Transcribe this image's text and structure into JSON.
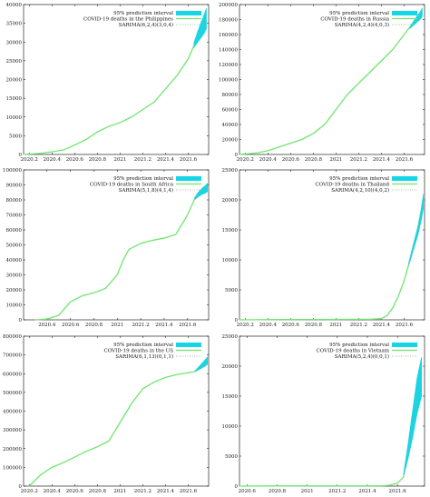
{
  "colors": {
    "line": "#6ee66e",
    "band": "#15d6e6",
    "sarima": "#8bb08b",
    "axis": "#000000",
    "grid": "#bbbbbb"
  },
  "chart_data": [
    {
      "type": "line",
      "title": "",
      "xlabel": "",
      "ylabel": "",
      "xlim": [
        2020.15,
        2021.78
      ],
      "ylim": [
        0,
        40000
      ],
      "xticks": [
        "2020.2",
        "2020.4",
        "2020.6",
        "2020.8",
        "2021",
        "2021.2",
        "2021.4",
        "2021.6"
      ],
      "yticks": [
        "0",
        "5000",
        "10000",
        "15000",
        "20000",
        "25000",
        "30000",
        "35000",
        "40000"
      ],
      "legend_position": "top-right",
      "series": [
        {
          "name": "95% prediction interval",
          "kind": "band",
          "x": [
            2021.65,
            2021.68,
            2021.71,
            2021.74,
            2021.76
          ],
          "lower": [
            28500,
            29800,
            31000,
            32300,
            33500
          ],
          "upper": [
            29800,
            32500,
            35000,
            37300,
            39000
          ]
        },
        {
          "name": "COVID-19 deaths in the Philippines",
          "kind": "line",
          "x": [
            2020.15,
            2020.3,
            2020.4,
            2020.5,
            2020.6,
            2020.7,
            2020.8,
            2020.9,
            2021.0,
            2021.1,
            2021.2,
            2021.3,
            2021.4,
            2021.5,
            2021.6,
            2021.65
          ],
          "y": [
            0,
            300,
            700,
            1200,
            2500,
            4000,
            6000,
            7500,
            8500,
            10000,
            12000,
            14000,
            17500,
            21000,
            25500,
            29000
          ]
        },
        {
          "name": "SARIMA(6,2,4)(3,0,4)",
          "kind": "dotted",
          "x": [
            2021.65,
            2021.7,
            2021.76
          ],
          "y": [
            29000,
            32000,
            36000
          ]
        }
      ]
    },
    {
      "type": "line",
      "title": "",
      "xlabel": "",
      "ylabel": "",
      "xlim": [
        2020.15,
        2021.78
      ],
      "ylim": [
        0,
        200000
      ],
      "xticks": [
        "2020.2",
        "2020.4",
        "2020.6",
        "2020.8",
        "2021",
        "2021.2",
        "2021.4",
        "2021.6"
      ],
      "yticks": [
        "0",
        "20000",
        "40000",
        "60000",
        "80000",
        "100000",
        "120000",
        "140000",
        "160000",
        "180000",
        "200000"
      ],
      "legend_position": "top-right",
      "series": [
        {
          "name": "95% prediction interval",
          "kind": "band",
          "x": [
            2021.65,
            2021.68,
            2021.71,
            2021.74,
            2021.76
          ],
          "lower": [
            168000,
            172000,
            176000,
            180000,
            184000
          ],
          "upper": [
            170000,
            177000,
            184000,
            190000,
            195000
          ]
        },
        {
          "name": "COVID-19 deaths in Russia",
          "kind": "line",
          "x": [
            2020.15,
            2020.3,
            2020.4,
            2020.5,
            2020.6,
            2020.7,
            2020.8,
            2020.9,
            2021.0,
            2021.1,
            2021.2,
            2021.3,
            2021.4,
            2021.5,
            2021.6,
            2021.65
          ],
          "y": [
            0,
            2000,
            5000,
            10000,
            15000,
            20000,
            28000,
            40000,
            60000,
            80000,
            95000,
            110000,
            125000,
            140000,
            160000,
            170000
          ]
        },
        {
          "name": "SARIMA(4,2,4)(4,0,3)",
          "kind": "dotted",
          "x": [
            2021.65,
            2021.7,
            2021.76
          ],
          "y": [
            170000,
            180000,
            190000
          ]
        }
      ]
    },
    {
      "type": "line",
      "title": "",
      "xlabel": "",
      "ylabel": "",
      "xlim": [
        2020.2,
        2021.78
      ],
      "ylim": [
        0,
        100000
      ],
      "xticks": [
        "2020.4",
        "2020.6",
        "2020.8",
        "2021",
        "2021.2",
        "2021.4",
        "2021.6"
      ],
      "yticks": [
        "0",
        "10000",
        "20000",
        "30000",
        "40000",
        "50000",
        "60000",
        "70000",
        "80000",
        "90000",
        "100000"
      ],
      "legend_position": "top-right",
      "series": [
        {
          "name": "95% prediction interval",
          "kind": "band",
          "x": [
            2021.66,
            2021.69,
            2021.72,
            2021.75,
            2021.77
          ],
          "lower": [
            80000,
            82000,
            83500,
            84500,
            85500
          ],
          "upper": [
            81500,
            85000,
            87500,
            89500,
            91000
          ]
        },
        {
          "name": "COVID-19 deaths in South Africa",
          "kind": "line",
          "x": [
            2020.3,
            2020.4,
            2020.5,
            2020.6,
            2020.7,
            2020.8,
            2020.9,
            2021.0,
            2021.05,
            2021.1,
            2021.2,
            2021.3,
            2021.4,
            2021.5,
            2021.6,
            2021.66
          ],
          "y": [
            0,
            500,
            3000,
            12000,
            16000,
            18000,
            21000,
            30000,
            40000,
            47000,
            51000,
            53000,
            54500,
            57000,
            70000,
            80500
          ]
        },
        {
          "name": "SARIMA(5,1,8)(4,1,4)",
          "kind": "dotted",
          "x": [
            2021.66,
            2021.72,
            2021.77
          ],
          "y": [
            80500,
            85000,
            88000
          ]
        }
      ]
    },
    {
      "type": "line",
      "title": "",
      "xlabel": "",
      "ylabel": "",
      "xlim": [
        2020.15,
        2021.78
      ],
      "ylim": [
        0,
        25000
      ],
      "xticks": [
        "2020.2",
        "2020.4",
        "2020.6",
        "2020.8",
        "2021",
        "2021.2",
        "2021.4",
        "2021.6"
      ],
      "yticks": [
        "0",
        "5000",
        "10000",
        "15000",
        "20000",
        "25000"
      ],
      "legend_position": "top-right",
      "series": [
        {
          "name": "95% prediction interval",
          "kind": "band",
          "x": [
            2021.64,
            2021.68,
            2021.72,
            2021.75,
            2021.77
          ],
          "lower": [
            9000,
            11500,
            14000,
            16500,
            18500
          ],
          "upper": [
            9500,
            12500,
            15500,
            18500,
            21000
          ]
        },
        {
          "name": "COVID-19 deaths in Thailand",
          "kind": "line",
          "x": [
            2020.15,
            2020.5,
            2020.8,
            2021.0,
            2021.2,
            2021.3,
            2021.4,
            2021.45,
            2021.5,
            2021.55,
            2021.6,
            2021.64
          ],
          "y": [
            0,
            50,
            60,
            70,
            90,
            100,
            200,
            700,
            2000,
            4000,
            6500,
            9200
          ]
        },
        {
          "name": "SARIMA(4,2,10)(4,0,2)",
          "kind": "dotted",
          "x": [
            2021.64,
            2021.7,
            2021.77
          ],
          "y": [
            9200,
            13500,
            19500
          ]
        }
      ]
    },
    {
      "type": "line",
      "title": "",
      "xlabel": "",
      "ylabel": "",
      "xlim": [
        2020.15,
        2021.78
      ],
      "ylim": [
        0,
        800000
      ],
      "xticks": [
        "2020.2",
        "2020.4",
        "2020.6",
        "2020.8",
        "2021",
        "2021.2",
        "2021.4",
        "2021.6"
      ],
      "yticks": [
        "0",
        "100000",
        "200000",
        "300000",
        "400000",
        "500000",
        "600000",
        "700000",
        "800000"
      ],
      "legend_position": "top-right",
      "series": [
        {
          "name": "95% prediction interval",
          "kind": "band",
          "x": [
            2021.66,
            2021.69,
            2021.72,
            2021.75,
            2021.77
          ],
          "lower": [
            610000,
            620000,
            630000,
            640000,
            650000
          ],
          "upper": [
            615000,
            635000,
            655000,
            675000,
            690000
          ]
        },
        {
          "name": "COVID-19 deaths in the US",
          "kind": "line",
          "x": [
            2020.2,
            2020.3,
            2020.4,
            2020.5,
            2020.6,
            2020.7,
            2020.8,
            2020.9,
            2021.0,
            2021.1,
            2021.2,
            2021.3,
            2021.4,
            2021.5,
            2021.6,
            2021.66
          ],
          "y": [
            0,
            60000,
            100000,
            125000,
            155000,
            185000,
            210000,
            240000,
            340000,
            440000,
            520000,
            555000,
            580000,
            595000,
            605000,
            612000
          ]
        },
        {
          "name": "SARIMA(6,1,13)(0,1,1)",
          "kind": "dotted",
          "x": [
            2021.66,
            2021.72,
            2021.77
          ],
          "y": [
            612000,
            640000,
            665000
          ]
        }
      ]
    },
    {
      "type": "line",
      "title": "",
      "xlabel": "",
      "ylabel": "",
      "xlim": [
        2020.55,
        2021.78
      ],
      "ylim": [
        0,
        25000
      ],
      "xticks": [
        "2020.6",
        "2020.8",
        "2021",
        "2021.2",
        "2021.4",
        "2021.6"
      ],
      "yticks": [
        "0",
        "5000",
        "10000",
        "15000",
        "20000",
        "25000"
      ],
      "legend_position": "top-right",
      "series": [
        {
          "name": "95% prediction interval",
          "kind": "band",
          "x": [
            2021.64,
            2021.67,
            2021.7,
            2021.73,
            2021.76
          ],
          "lower": [
            1500,
            4500,
            8000,
            12000,
            15000
          ],
          "upper": [
            2000,
            7000,
            12500,
            18000,
            21500
          ]
        },
        {
          "name": "COVID-19 deaths in Vietnam",
          "kind": "line",
          "x": [
            2020.55,
            2020.8,
            2021.0,
            2021.2,
            2021.4,
            2021.5,
            2021.55,
            2021.6,
            2021.64
          ],
          "y": [
            0,
            30,
            35,
            35,
            40,
            60,
            150,
            500,
            1500
          ]
        },
        {
          "name": "SARIMA(5,2,4)(0,0,1)",
          "kind": "dotted",
          "x": [
            2021.64,
            2021.7,
            2021.76
          ],
          "y": [
            1500,
            9000,
            18000
          ]
        }
      ]
    }
  ]
}
